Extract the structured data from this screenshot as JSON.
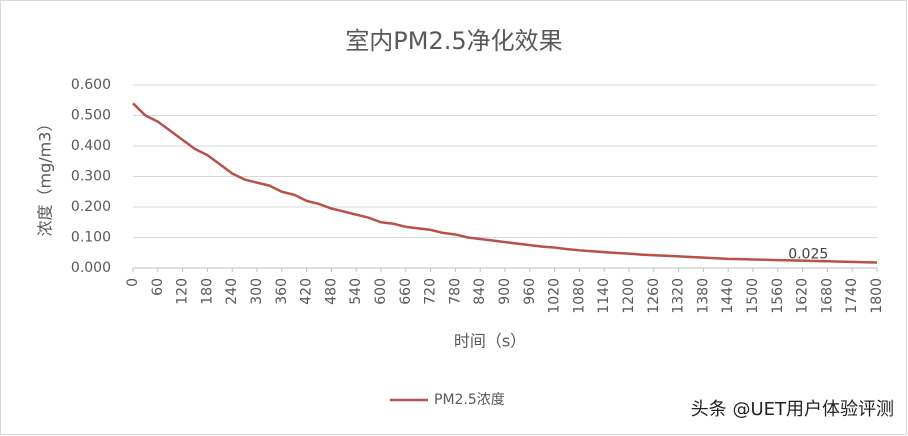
{
  "chart_data": {
    "type": "line",
    "title": "室内PM2.5净化效果",
    "x_label": "时间（s）",
    "y_label": "浓度（mg/m3）",
    "x": [
      0,
      30,
      60,
      90,
      120,
      150,
      180,
      210,
      240,
      270,
      300,
      330,
      360,
      390,
      420,
      450,
      480,
      510,
      540,
      570,
      600,
      630,
      660,
      690,
      720,
      750,
      780,
      810,
      840,
      870,
      900,
      930,
      960,
      990,
      1020,
      1050,
      1080,
      1110,
      1140,
      1170,
      1200,
      1230,
      1260,
      1290,
      1320,
      1350,
      1380,
      1410,
      1440,
      1470,
      1500,
      1530,
      1560,
      1590,
      1620,
      1650,
      1680,
      1710,
      1740,
      1770,
      1800
    ],
    "series": [
      {
        "name": "PM2.5浓度",
        "color": "#b9504a",
        "values": [
          0.54,
          0.5,
          0.48,
          0.45,
          0.42,
          0.39,
          0.37,
          0.34,
          0.31,
          0.29,
          0.28,
          0.27,
          0.25,
          0.24,
          0.22,
          0.21,
          0.195,
          0.185,
          0.175,
          0.165,
          0.15,
          0.145,
          0.135,
          0.13,
          0.125,
          0.115,
          0.11,
          0.1,
          0.095,
          0.09,
          0.085,
          0.08,
          0.075,
          0.07,
          0.067,
          0.062,
          0.058,
          0.055,
          0.052,
          0.049,
          0.047,
          0.044,
          0.042,
          0.04,
          0.038,
          0.036,
          0.034,
          0.032,
          0.03,
          0.029,
          0.028,
          0.027,
          0.026,
          0.025,
          0.024,
          0.023,
          0.022,
          0.021,
          0.02,
          0.019,
          0.018
        ],
        "value_labels": [
          null,
          null,
          null,
          null,
          null,
          null,
          null,
          null,
          null,
          null,
          null,
          null,
          null,
          null,
          null,
          null,
          null,
          null,
          null,
          null,
          null,
          null,
          null,
          null,
          null,
          null,
          null,
          null,
          null,
          null,
          null,
          null,
          null,
          null,
          null,
          null,
          null,
          null,
          null,
          null,
          null,
          null,
          null,
          null,
          null,
          null,
          null,
          null,
          null,
          null,
          null,
          null,
          null,
          "0.025",
          null,
          null,
          null,
          null,
          null,
          null,
          null
        ]
      }
    ],
    "xlim": [
      0,
      1800
    ],
    "xticks": [
      0,
      60,
      120,
      180,
      240,
      300,
      360,
      420,
      480,
      540,
      600,
      660,
      720,
      780,
      840,
      900,
      960,
      1020,
      1080,
      1140,
      1200,
      1260,
      1320,
      1380,
      1440,
      1500,
      1560,
      1620,
      1680,
      1740,
      1800
    ],
    "ylim": [
      0,
      0.6
    ],
    "yticks": [
      {
        "value": 0,
        "label": "0.000"
      },
      {
        "value": 0.1,
        "label": "0.100"
      },
      {
        "value": 0.2,
        "label": "0.200"
      },
      {
        "value": 0.3,
        "label": "0.300"
      },
      {
        "value": 0.4,
        "label": "0.400"
      },
      {
        "value": 0.5,
        "label": "0.500"
      },
      {
        "value": 0.6,
        "label": "0.600"
      }
    ],
    "grid": true,
    "legend": "bottom",
    "watermark": "头条 @UET用户体验评测"
  }
}
